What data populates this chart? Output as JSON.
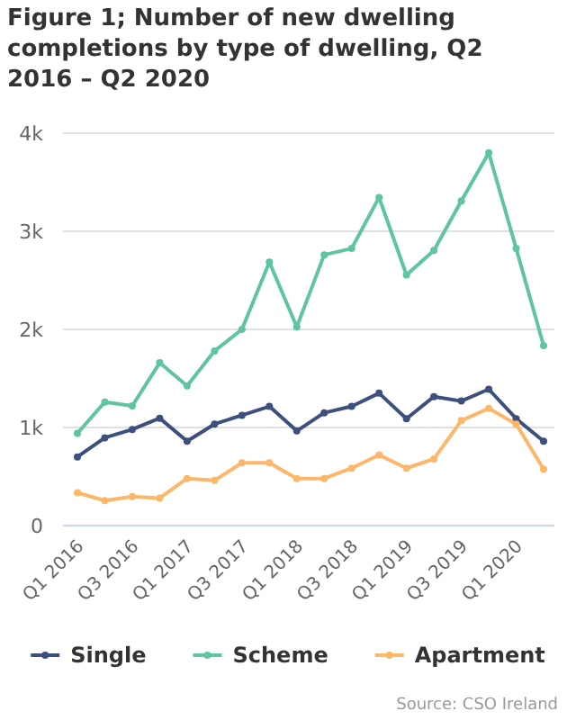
{
  "chart_data": {
    "type": "line",
    "title": "Figure 1; Number of new dwelling completions by type of dwelling, Q2 2016 – Q2 2020",
    "categories": [
      "Q1 2016",
      null,
      "Q3 2016",
      null,
      "Q1 2017",
      null,
      "Q3 2017",
      null,
      "Q1 2018",
      null,
      "Q3 2018",
      null,
      "Q1 2019",
      null,
      "Q3 2019",
      null,
      "Q1 2020",
      null
    ],
    "series": [
      {
        "name": "Single",
        "color": "#3d4f7c",
        "values": [
          700,
          895,
          980,
          1095,
          860,
          1035,
          1125,
          1215,
          965,
          1150,
          1215,
          1350,
          1090,
          1315,
          1270,
          1390,
          1090,
          860
        ]
      },
      {
        "name": "Scheme",
        "color": "#5ec4a2",
        "values": [
          940,
          1260,
          1220,
          1660,
          1425,
          1780,
          2000,
          2685,
          2025,
          2760,
          2825,
          3345,
          2555,
          2805,
          3310,
          3800,
          2825,
          1835
        ]
      },
      {
        "name": "Apartment",
        "color": "#fdb76b",
        "values": [
          335,
          255,
          295,
          280,
          480,
          460,
          640,
          640,
          480,
          480,
          585,
          720,
          585,
          680,
          1070,
          1195,
          1035,
          575
        ]
      }
    ],
    "ylim": [
      0,
      4000
    ],
    "yticks": [
      0,
      {
        "value": 1000,
        "label": "1k"
      },
      {
        "value": 2000,
        "label": "2k"
      },
      {
        "value": 3000,
        "label": "3k"
      },
      {
        "value": 4000,
        "label": "4k"
      }
    ],
    "grid": "y",
    "legend": "bottom",
    "marker": "circle",
    "line_style": "solid",
    "annotations": [
      "Source: CSO Ireland"
    ]
  }
}
